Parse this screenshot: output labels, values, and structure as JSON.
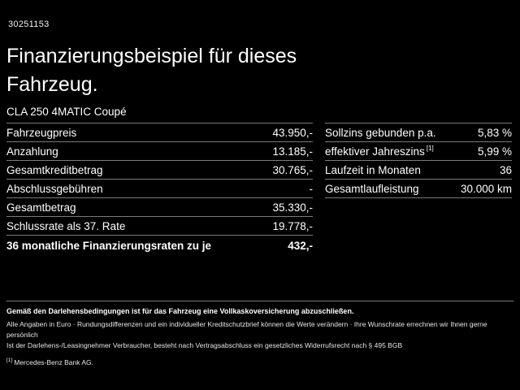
{
  "colors": {
    "background": "#000000",
    "text": "#ffffff",
    "divider": "#7a7a7a"
  },
  "header": {
    "vehicle_id": "30251153",
    "title_line1": "Finanzierungsbeispiel für dieses",
    "title_line2": "Fahrzeug.",
    "vehicle_name": "CLA 250 4MATIC Coupé"
  },
  "left_table": {
    "rows": [
      {
        "label": "Fahrzeugpreis",
        "value": "43.950,-"
      },
      {
        "label": "Anzahlung",
        "value": "13.185,-"
      },
      {
        "label": "Gesamtkreditbetrag",
        "value": "30.765,-"
      },
      {
        "label": "Abschlussgebühren",
        "value": "-"
      },
      {
        "label": "Gesamtbetrag",
        "value": "35.330,-"
      },
      {
        "label": "Schlussrate als 37. Rate",
        "value": "19.778,-"
      },
      {
        "label": "36 monatliche Finanzierungsraten zu je",
        "value": "432,-"
      }
    ]
  },
  "right_table": {
    "rows": [
      {
        "label": "Sollzins gebunden p.a.",
        "value": "5,83 %"
      },
      {
        "label": "effektiver Jahreszins",
        "sup": "[1]",
        "value": "5,99 %"
      },
      {
        "label": "Laufzeit in Monaten",
        "value": "36"
      },
      {
        "label": "Gesamtlaufleistung",
        "value": "30.000 km"
      }
    ]
  },
  "footer": {
    "insurance_note": "Gemäß den Darlehensbedingungen ist für das Fahrzeug eine Vollkaskoversicherung abzuschließen.",
    "disclaimer1": "Alle Angaben in Euro · Rundungsdifferenzen und ein individueller Kreditschutzbrief können die Werte verändern · Ihre Wunschrate errechnen wir Ihnen gerne persönlich",
    "disclaimer2": "Ist der Darlehens-/Leasingnehmer Verbraucher, besteht nach Vertragsabschluss ein gesetzliches Widerrufsrecht nach § 495 BGB",
    "footnote_marker": "[1]",
    "footnote_text": "Mercedes-Benz Bank AG."
  }
}
